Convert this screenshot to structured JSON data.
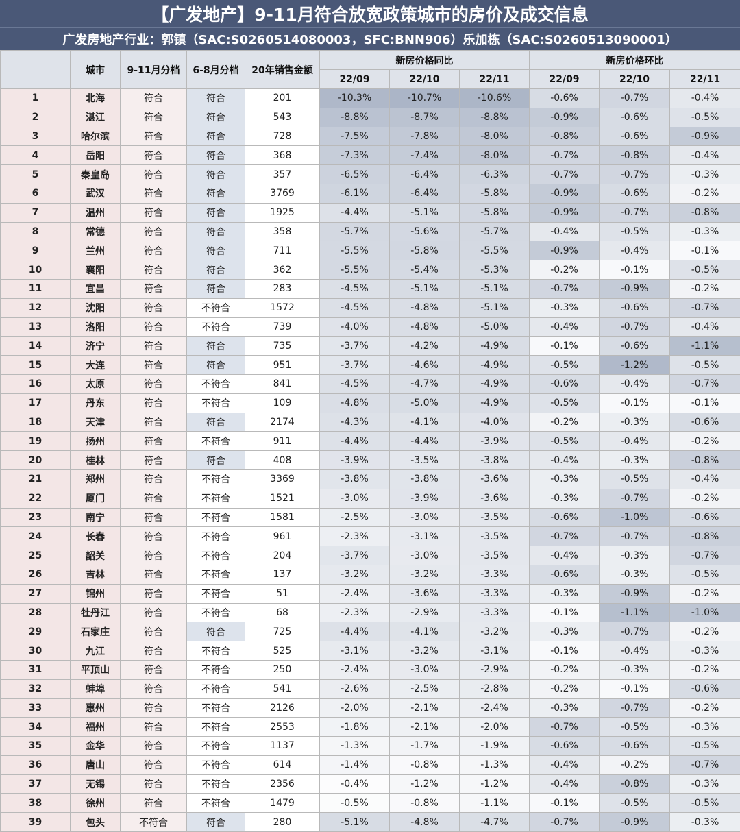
{
  "title": "【广发地产】9-11月符合放宽政策城市的房价及成交信息",
  "subtitle": "广发房地产行业：郭镇（SAC:S0260514080003，SFC:BNN906）乐加栋（SAC:S0260513090001）",
  "headers": {
    "rank": "",
    "city": "城市",
    "tier_911": "9-11月分档",
    "tier_68": "6-8月分档",
    "sales_2020": "20年销售金额",
    "yoy_group": "新房价格同比",
    "mom_group": "新房价格环比",
    "months": [
      "22/09",
      "22/10",
      "22/11"
    ]
  },
  "colors": {
    "header_bg": "#4a5877",
    "col_header_bg": "#dfe3ea",
    "rank_bg": "#f3e6e6",
    "match_bg": "#dde3ec",
    "heat_max": "#9aa6bb"
  },
  "rows": [
    {
      "rank": "1",
      "city": "北海",
      "tier_911": "符合",
      "tier_68": "符合",
      "sales": "201",
      "yoy": [
        "-10.3%",
        "-10.7%",
        "-10.6%"
      ],
      "mom": [
        "-0.6%",
        "-0.7%",
        "-0.4%"
      ]
    },
    {
      "rank": "2",
      "city": "湛江",
      "tier_911": "符合",
      "tier_68": "符合",
      "sales": "543",
      "yoy": [
        "-8.8%",
        "-8.7%",
        "-8.8%"
      ],
      "mom": [
        "-0.9%",
        "-0.6%",
        "-0.5%"
      ]
    },
    {
      "rank": "3",
      "city": "哈尔滨",
      "tier_911": "符合",
      "tier_68": "符合",
      "sales": "728",
      "yoy": [
        "-7.5%",
        "-7.8%",
        "-8.0%"
      ],
      "mom": [
        "-0.8%",
        "-0.6%",
        "-0.9%"
      ]
    },
    {
      "rank": "4",
      "city": "岳阳",
      "tier_911": "符合",
      "tier_68": "符合",
      "sales": "368",
      "yoy": [
        "-7.3%",
        "-7.4%",
        "-8.0%"
      ],
      "mom": [
        "-0.7%",
        "-0.8%",
        "-0.4%"
      ]
    },
    {
      "rank": "5",
      "city": "秦皇岛",
      "tier_911": "符合",
      "tier_68": "符合",
      "sales": "357",
      "yoy": [
        "-6.5%",
        "-6.4%",
        "-6.3%"
      ],
      "mom": [
        "-0.7%",
        "-0.7%",
        "-0.3%"
      ]
    },
    {
      "rank": "6",
      "city": "武汉",
      "tier_911": "符合",
      "tier_68": "符合",
      "sales": "3769",
      "yoy": [
        "-6.1%",
        "-6.4%",
        "-5.8%"
      ],
      "mom": [
        "-0.9%",
        "-0.6%",
        "-0.2%"
      ]
    },
    {
      "rank": "7",
      "city": "温州",
      "tier_911": "符合",
      "tier_68": "符合",
      "sales": "1925",
      "yoy": [
        "-4.4%",
        "-5.1%",
        "-5.8%"
      ],
      "mom": [
        "-0.9%",
        "-0.7%",
        "-0.8%"
      ]
    },
    {
      "rank": "8",
      "city": "常德",
      "tier_911": "符合",
      "tier_68": "符合",
      "sales": "358",
      "yoy": [
        "-5.7%",
        "-5.6%",
        "-5.7%"
      ],
      "mom": [
        "-0.4%",
        "-0.5%",
        "-0.3%"
      ]
    },
    {
      "rank": "9",
      "city": "兰州",
      "tier_911": "符合",
      "tier_68": "符合",
      "sales": "711",
      "yoy": [
        "-5.5%",
        "-5.8%",
        "-5.5%"
      ],
      "mom": [
        "-0.9%",
        "-0.4%",
        "-0.1%"
      ]
    },
    {
      "rank": "10",
      "city": "襄阳",
      "tier_911": "符合",
      "tier_68": "符合",
      "sales": "362",
      "yoy": [
        "-5.5%",
        "-5.4%",
        "-5.3%"
      ],
      "mom": [
        "-0.2%",
        "-0.1%",
        "-0.5%"
      ]
    },
    {
      "rank": "11",
      "city": "宜昌",
      "tier_911": "符合",
      "tier_68": "符合",
      "sales": "283",
      "yoy": [
        "-4.5%",
        "-5.1%",
        "-5.1%"
      ],
      "mom": [
        "-0.7%",
        "-0.9%",
        "-0.2%"
      ]
    },
    {
      "rank": "12",
      "city": "沈阳",
      "tier_911": "符合",
      "tier_68": "不符合",
      "sales": "1572",
      "yoy": [
        "-4.5%",
        "-4.8%",
        "-5.1%"
      ],
      "mom": [
        "-0.3%",
        "-0.6%",
        "-0.7%"
      ]
    },
    {
      "rank": "13",
      "city": "洛阳",
      "tier_911": "符合",
      "tier_68": "不符合",
      "sales": "739",
      "yoy": [
        "-4.0%",
        "-4.8%",
        "-5.0%"
      ],
      "mom": [
        "-0.4%",
        "-0.7%",
        "-0.4%"
      ]
    },
    {
      "rank": "14",
      "city": "济宁",
      "tier_911": "符合",
      "tier_68": "符合",
      "sales": "735",
      "yoy": [
        "-3.7%",
        "-4.2%",
        "-4.9%"
      ],
      "mom": [
        "-0.1%",
        "-0.6%",
        "-1.1%"
      ]
    },
    {
      "rank": "15",
      "city": "大连",
      "tier_911": "符合",
      "tier_68": "符合",
      "sales": "951",
      "yoy": [
        "-3.7%",
        "-4.6%",
        "-4.9%"
      ],
      "mom": [
        "-0.5%",
        "-1.2%",
        "-0.5%"
      ]
    },
    {
      "rank": "16",
      "city": "太原",
      "tier_911": "符合",
      "tier_68": "不符合",
      "sales": "841",
      "yoy": [
        "-4.5%",
        "-4.7%",
        "-4.9%"
      ],
      "mom": [
        "-0.6%",
        "-0.4%",
        "-0.7%"
      ]
    },
    {
      "rank": "17",
      "city": "丹东",
      "tier_911": "符合",
      "tier_68": "不符合",
      "sales": "109",
      "yoy": [
        "-4.8%",
        "-5.0%",
        "-4.9%"
      ],
      "mom": [
        "-0.5%",
        "-0.1%",
        "-0.1%"
      ]
    },
    {
      "rank": "18",
      "city": "天津",
      "tier_911": "符合",
      "tier_68": "符合",
      "sales": "2174",
      "yoy": [
        "-4.3%",
        "-4.1%",
        "-4.0%"
      ],
      "mom": [
        "-0.2%",
        "-0.3%",
        "-0.6%"
      ]
    },
    {
      "rank": "19",
      "city": "扬州",
      "tier_911": "符合",
      "tier_68": "不符合",
      "sales": "911",
      "yoy": [
        "-4.4%",
        "-4.4%",
        "-3.9%"
      ],
      "mom": [
        "-0.5%",
        "-0.4%",
        "-0.2%"
      ]
    },
    {
      "rank": "20",
      "city": "桂林",
      "tier_911": "符合",
      "tier_68": "符合",
      "sales": "408",
      "yoy": [
        "-3.9%",
        "-3.5%",
        "-3.8%"
      ],
      "mom": [
        "-0.4%",
        "-0.3%",
        "-0.8%"
      ]
    },
    {
      "rank": "21",
      "city": "郑州",
      "tier_911": "符合",
      "tier_68": "不符合",
      "sales": "3369",
      "yoy": [
        "-3.8%",
        "-3.8%",
        "-3.6%"
      ],
      "mom": [
        "-0.3%",
        "-0.5%",
        "-0.4%"
      ]
    },
    {
      "rank": "22",
      "city": "厦门",
      "tier_911": "符合",
      "tier_68": "不符合",
      "sales": "1521",
      "yoy": [
        "-3.0%",
        "-3.9%",
        "-3.6%"
      ],
      "mom": [
        "-0.3%",
        "-0.7%",
        "-0.2%"
      ]
    },
    {
      "rank": "23",
      "city": "南宁",
      "tier_911": "符合",
      "tier_68": "不符合",
      "sales": "1581",
      "yoy": [
        "-2.5%",
        "-3.0%",
        "-3.5%"
      ],
      "mom": [
        "-0.6%",
        "-1.0%",
        "-0.6%"
      ]
    },
    {
      "rank": "24",
      "city": "长春",
      "tier_911": "符合",
      "tier_68": "不符合",
      "sales": "961",
      "yoy": [
        "-2.3%",
        "-3.1%",
        "-3.5%"
      ],
      "mom": [
        "-0.7%",
        "-0.7%",
        "-0.8%"
      ]
    },
    {
      "rank": "25",
      "city": "韶关",
      "tier_911": "符合",
      "tier_68": "不符合",
      "sales": "204",
      "yoy": [
        "-3.7%",
        "-3.0%",
        "-3.5%"
      ],
      "mom": [
        "-0.4%",
        "-0.3%",
        "-0.7%"
      ]
    },
    {
      "rank": "26",
      "city": "吉林",
      "tier_911": "符合",
      "tier_68": "不符合",
      "sales": "137",
      "yoy": [
        "-3.2%",
        "-3.2%",
        "-3.3%"
      ],
      "mom": [
        "-0.6%",
        "-0.3%",
        "-0.5%"
      ]
    },
    {
      "rank": "27",
      "city": "锦州",
      "tier_911": "符合",
      "tier_68": "不符合",
      "sales": "51",
      "yoy": [
        "-2.4%",
        "-3.6%",
        "-3.3%"
      ],
      "mom": [
        "-0.3%",
        "-0.9%",
        "-0.2%"
      ]
    },
    {
      "rank": "28",
      "city": "牡丹江",
      "tier_911": "符合",
      "tier_68": "不符合",
      "sales": "68",
      "yoy": [
        "-2.3%",
        "-2.9%",
        "-3.3%"
      ],
      "mom": [
        "-0.1%",
        "-1.1%",
        "-1.0%"
      ]
    },
    {
      "rank": "29",
      "city": "石家庄",
      "tier_911": "符合",
      "tier_68": "符合",
      "sales": "725",
      "yoy": [
        "-4.4%",
        "-4.1%",
        "-3.2%"
      ],
      "mom": [
        "-0.3%",
        "-0.7%",
        "-0.2%"
      ]
    },
    {
      "rank": "30",
      "city": "九江",
      "tier_911": "符合",
      "tier_68": "不符合",
      "sales": "525",
      "yoy": [
        "-3.1%",
        "-3.2%",
        "-3.1%"
      ],
      "mom": [
        "-0.1%",
        "-0.4%",
        "-0.3%"
      ]
    },
    {
      "rank": "31",
      "city": "平顶山",
      "tier_911": "符合",
      "tier_68": "不符合",
      "sales": "250",
      "yoy": [
        "-2.4%",
        "-3.0%",
        "-2.9%"
      ],
      "mom": [
        "-0.2%",
        "-0.3%",
        "-0.2%"
      ]
    },
    {
      "rank": "32",
      "city": "蚌埠",
      "tier_911": "符合",
      "tier_68": "不符合",
      "sales": "541",
      "yoy": [
        "-2.6%",
        "-2.5%",
        "-2.8%"
      ],
      "mom": [
        "-0.2%",
        "-0.1%",
        "-0.6%"
      ]
    },
    {
      "rank": "33",
      "city": "惠州",
      "tier_911": "符合",
      "tier_68": "不符合",
      "sales": "2126",
      "yoy": [
        "-2.0%",
        "-2.1%",
        "-2.4%"
      ],
      "mom": [
        "-0.3%",
        "-0.7%",
        "-0.2%"
      ]
    },
    {
      "rank": "34",
      "city": "福州",
      "tier_911": "符合",
      "tier_68": "不符合",
      "sales": "2553",
      "yoy": [
        "-1.8%",
        "-2.1%",
        "-2.0%"
      ],
      "mom": [
        "-0.7%",
        "-0.5%",
        "-0.3%"
      ]
    },
    {
      "rank": "35",
      "city": "金华",
      "tier_911": "符合",
      "tier_68": "不符合",
      "sales": "1137",
      "yoy": [
        "-1.3%",
        "-1.7%",
        "-1.9%"
      ],
      "mom": [
        "-0.6%",
        "-0.6%",
        "-0.5%"
      ]
    },
    {
      "rank": "36",
      "city": "唐山",
      "tier_911": "符合",
      "tier_68": "不符合",
      "sales": "614",
      "yoy": [
        "-1.4%",
        "-0.8%",
        "-1.3%"
      ],
      "mom": [
        "-0.4%",
        "-0.2%",
        "-0.7%"
      ]
    },
    {
      "rank": "37",
      "city": "无锡",
      "tier_911": "符合",
      "tier_68": "不符合",
      "sales": "2356",
      "yoy": [
        "-0.4%",
        "-1.2%",
        "-1.2%"
      ],
      "mom": [
        "-0.4%",
        "-0.8%",
        "-0.3%"
      ]
    },
    {
      "rank": "38",
      "city": "徐州",
      "tier_911": "符合",
      "tier_68": "不符合",
      "sales": "1479",
      "yoy": [
        "-0.5%",
        "-0.8%",
        "-1.1%"
      ],
      "mom": [
        "-0.1%",
        "-0.5%",
        "-0.5%"
      ]
    },
    {
      "rank": "39",
      "city": "包头",
      "tier_911": "不符合",
      "tier_68": "符合",
      "sales": "280",
      "yoy": [
        "-5.1%",
        "-4.8%",
        "-4.7%"
      ],
      "mom": [
        "-0.7%",
        "-0.9%",
        "-0.3%"
      ]
    }
  ]
}
